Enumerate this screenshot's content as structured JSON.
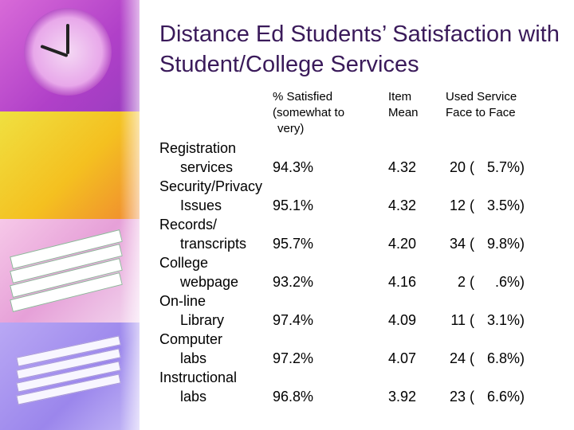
{
  "title": "Distance Ed Students’ Satisfaction with Student/College Services",
  "decoration_icons": [
    "clock-icon",
    "clock-icon",
    "book-stack-icon",
    "paper-stack-icon"
  ],
  "headers": {
    "satisfied_l1": "% Satisfied",
    "satisfied_l2": "(somewhat to",
    "satisfied_l3": "very)",
    "mean_l1": "Item",
    "mean_l2": "Mean",
    "used_l1": "Used Service",
    "used_l2": "Face to Face"
  },
  "rows": [
    {
      "label_line1": "Registration",
      "label_line2": "services",
      "satisfied": "94.3%",
      "mean": "4.32",
      "used_count": "20",
      "used_pct": "5.7%)"
    },
    {
      "label_line1": "Security/Privacy",
      "label_line2": "Issues",
      "satisfied": "95.1%",
      "mean": "4.32",
      "used_count": "12",
      "used_pct": "3.5%)"
    },
    {
      "label_line1": "Records/",
      "label_line2": "transcripts",
      "satisfied": "95.7%",
      "mean": "4.20",
      "used_count": "34",
      "used_pct": "9.8%)"
    },
    {
      "label_line1": "College",
      "label_line2": "webpage",
      "satisfied": "93.2%",
      "mean": "4.16",
      "used_count": "2",
      "used_pct": ".6%)"
    },
    {
      "label_line1": "On-line",
      "label_line2": "Library",
      "satisfied": "97.4%",
      "mean": "4.09",
      "used_count": "11",
      "used_pct": "3.1%)"
    },
    {
      "label_line1": "Computer",
      "label_line2": "labs",
      "satisfied": "97.2%",
      "mean": "4.07",
      "used_count": "24",
      "used_pct": "6.8%)"
    },
    {
      "label_line1": "Instructional",
      "label_line2": "labs",
      "satisfied": "96.8%",
      "mean": "3.92",
      "used_count": "23",
      "used_pct": "6.6%)"
    }
  ]
}
